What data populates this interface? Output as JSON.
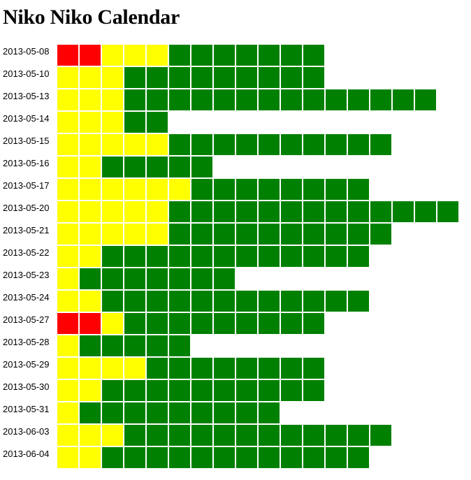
{
  "page": {
    "title": "Niko Niko Calendar"
  },
  "colors": {
    "bad": "#ff0000",
    "neutral": "#ffff00",
    "good": "#008000"
  },
  "days": [
    {
      "date": "2013-05-08",
      "bad": 2,
      "neutral": 3,
      "good": 7
    },
    {
      "date": "2013-05-10",
      "bad": 0,
      "neutral": 3,
      "good": 9
    },
    {
      "date": "2013-05-13",
      "bad": 0,
      "neutral": 3,
      "good": 14
    },
    {
      "date": "2013-05-14",
      "bad": 0,
      "neutral": 3,
      "good": 2
    },
    {
      "date": "2013-05-15",
      "bad": 0,
      "neutral": 5,
      "good": 10
    },
    {
      "date": "2013-05-16",
      "bad": 0,
      "neutral": 2,
      "good": 5
    },
    {
      "date": "2013-05-17",
      "bad": 0,
      "neutral": 6,
      "good": 8
    },
    {
      "date": "2013-05-20",
      "bad": 0,
      "neutral": 5,
      "good": 13
    },
    {
      "date": "2013-05-21",
      "bad": 0,
      "neutral": 5,
      "good": 10
    },
    {
      "date": "2013-05-22",
      "bad": 0,
      "neutral": 2,
      "good": 12
    },
    {
      "date": "2013-05-23",
      "bad": 0,
      "neutral": 1,
      "good": 7
    },
    {
      "date": "2013-05-24",
      "bad": 0,
      "neutral": 2,
      "good": 12
    },
    {
      "date": "2013-05-27",
      "bad": 2,
      "neutral": 1,
      "good": 9
    },
    {
      "date": "2013-05-28",
      "bad": 0,
      "neutral": 1,
      "good": 5
    },
    {
      "date": "2013-05-29",
      "bad": 0,
      "neutral": 4,
      "good": 8
    },
    {
      "date": "2013-05-30",
      "bad": 0,
      "neutral": 2,
      "good": 10
    },
    {
      "date": "2013-05-31",
      "bad": 0,
      "neutral": 1,
      "good": 9
    },
    {
      "date": "2013-06-03",
      "bad": 0,
      "neutral": 3,
      "good": 12
    },
    {
      "date": "2013-06-04",
      "bad": 0,
      "neutral": 2,
      "good": 12
    }
  ]
}
